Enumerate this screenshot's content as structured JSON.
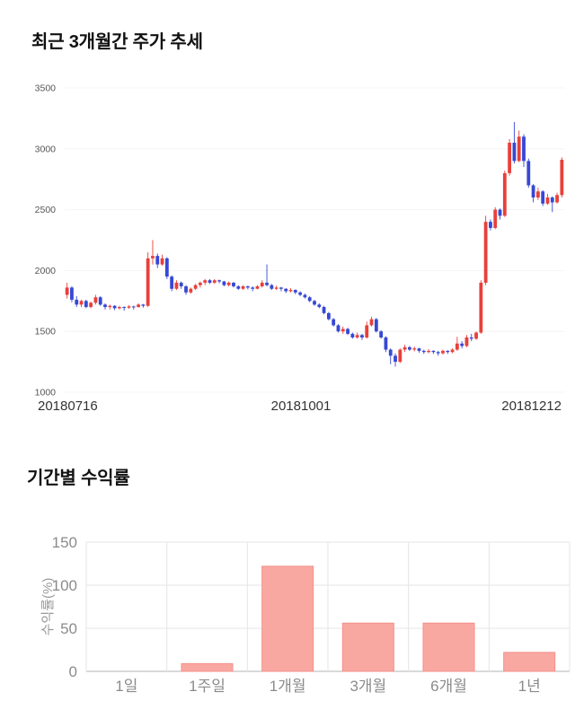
{
  "sections": {
    "price_trend": {
      "title": "최근 3개월간 주가 추세"
    },
    "returns": {
      "title": "기간별 수익률"
    }
  },
  "chart_data": [
    {
      "type": "candlestick",
      "title": "최근 3개월간 주가 추세",
      "ylim": [
        1000,
        3500
      ],
      "y_ticks": [
        1000,
        1500,
        2000,
        2500,
        3000,
        3500
      ],
      "x_labels": [
        "20180716",
        "20181001",
        "20181212"
      ],
      "up_color": "#e8403a",
      "down_color": "#3748d4",
      "tick_color": "#555555",
      "x_label_color": "#333333",
      "candles": [
        [
          1800,
          1900,
          1770,
          1860
        ],
        [
          1860,
          1870,
          1740,
          1760
        ],
        [
          1760,
          1790,
          1700,
          1720
        ],
        [
          1720,
          1760,
          1700,
          1750
        ],
        [
          1750,
          1760,
          1690,
          1700
        ],
        [
          1700,
          1745,
          1690,
          1735
        ],
        [
          1735,
          1800,
          1720,
          1780
        ],
        [
          1780,
          1790,
          1710,
          1720
        ],
        [
          1720,
          1730,
          1680,
          1700
        ],
        [
          1700,
          1720,
          1680,
          1710
        ],
        [
          1710,
          1715,
          1675,
          1690
        ],
        [
          1690,
          1710,
          1680,
          1700
        ],
        [
          1700,
          1705,
          1670,
          1695
        ],
        [
          1695,
          1715,
          1685,
          1705
        ],
        [
          1705,
          1710,
          1680,
          1700
        ],
        [
          1700,
          1730,
          1695,
          1720
        ],
        [
          1720,
          1725,
          1695,
          1710
        ],
        [
          1710,
          2150,
          1700,
          2100
        ],
        [
          2100,
          2250,
          2050,
          2120
        ],
        [
          2120,
          2140,
          2020,
          2050
        ],
        [
          2050,
          2130,
          2040,
          2100
        ],
        [
          2100,
          2110,
          1930,
          1950
        ],
        [
          1950,
          1960,
          1830,
          1850
        ],
        [
          1850,
          1920,
          1840,
          1900
        ],
        [
          1900,
          1910,
          1850,
          1870
        ],
        [
          1870,
          1880,
          1800,
          1820
        ],
        [
          1820,
          1860,
          1810,
          1850
        ],
        [
          1850,
          1890,
          1840,
          1880
        ],
        [
          1880,
          1910,
          1860,
          1900
        ],
        [
          1900,
          1930,
          1880,
          1920
        ],
        [
          1920,
          1930,
          1890,
          1900
        ],
        [
          1900,
          1930,
          1890,
          1920
        ],
        [
          1920,
          1925,
          1895,
          1910
        ],
        [
          1910,
          1915,
          1870,
          1880
        ],
        [
          1880,
          1910,
          1870,
          1900
        ],
        [
          1900,
          1905,
          1860,
          1870
        ],
        [
          1870,
          1880,
          1840,
          1850
        ],
        [
          1850,
          1880,
          1840,
          1870
        ],
        [
          1870,
          1875,
          1845,
          1860
        ],
        [
          1860,
          1870,
          1830,
          1850
        ],
        [
          1850,
          1880,
          1845,
          1870
        ],
        [
          1870,
          1920,
          1860,
          1900
        ],
        [
          1900,
          2050,
          1870,
          1880
        ],
        [
          1880,
          1890,
          1840,
          1850
        ],
        [
          1850,
          1875,
          1840,
          1860
        ],
        [
          1860,
          1865,
          1830,
          1850
        ],
        [
          1850,
          1855,
          1815,
          1830
        ],
        [
          1830,
          1855,
          1820,
          1840
        ],
        [
          1840,
          1845,
          1805,
          1820
        ],
        [
          1820,
          1830,
          1790,
          1800
        ],
        [
          1800,
          1810,
          1770,
          1780
        ],
        [
          1780,
          1790,
          1740,
          1750
        ],
        [
          1750,
          1760,
          1710,
          1720
        ],
        [
          1720,
          1730,
          1690,
          1700
        ],
        [
          1700,
          1710,
          1640,
          1650
        ],
        [
          1650,
          1660,
          1590,
          1600
        ],
        [
          1600,
          1610,
          1540,
          1550
        ],
        [
          1550,
          1560,
          1490,
          1500
        ],
        [
          1500,
          1540,
          1480,
          1520
        ],
        [
          1520,
          1530,
          1470,
          1480
        ],
        [
          1480,
          1490,
          1440,
          1450
        ],
        [
          1450,
          1490,
          1440,
          1470
        ],
        [
          1470,
          1480,
          1430,
          1450
        ],
        [
          1450,
          1580,
          1440,
          1550
        ],
        [
          1550,
          1620,
          1540,
          1600
        ],
        [
          1600,
          1610,
          1490,
          1500
        ],
        [
          1500,
          1510,
          1440,
          1450
        ],
        [
          1450,
          1460,
          1330,
          1350
        ],
        [
          1350,
          1360,
          1230,
          1300
        ],
        [
          1300,
          1320,
          1210,
          1250
        ],
        [
          1250,
          1360,
          1240,
          1350
        ],
        [
          1350,
          1390,
          1330,
          1370
        ],
        [
          1370,
          1380,
          1340,
          1350
        ],
        [
          1350,
          1375,
          1335,
          1360
        ],
        [
          1360,
          1365,
          1325,
          1340
        ],
        [
          1340,
          1350,
          1315,
          1330
        ],
        [
          1330,
          1355,
          1320,
          1340
        ],
        [
          1340,
          1345,
          1315,
          1330
        ],
        [
          1330,
          1340,
          1300,
          1320
        ],
        [
          1320,
          1350,
          1310,
          1340
        ],
        [
          1340,
          1345,
          1315,
          1330
        ],
        [
          1330,
          1360,
          1320,
          1350
        ],
        [
          1350,
          1455,
          1340,
          1400
        ],
        [
          1400,
          1420,
          1360,
          1380
        ],
        [
          1380,
          1470,
          1370,
          1450
        ],
        [
          1450,
          1480,
          1420,
          1440
        ],
        [
          1440,
          1500,
          1430,
          1490
        ],
        [
          1490,
          1920,
          1480,
          1900
        ],
        [
          1900,
          2450,
          1880,
          2400
        ],
        [
          2400,
          2420,
          2330,
          2350
        ],
        [
          2350,
          2520,
          2340,
          2500
        ],
        [
          2500,
          2510,
          2420,
          2450
        ],
        [
          2450,
          2820,
          2440,
          2800
        ],
        [
          2800,
          3080,
          2780,
          3050
        ],
        [
          3050,
          3220,
          2880,
          2900
        ],
        [
          2900,
          3150,
          2890,
          3100
        ],
        [
          3100,
          3120,
          2850,
          2900
        ],
        [
          2900,
          2920,
          2680,
          2700
        ],
        [
          2700,
          2710,
          2560,
          2600
        ],
        [
          2600,
          2680,
          2580,
          2650
        ],
        [
          2650,
          2660,
          2530,
          2550
        ],
        [
          2550,
          2630,
          2540,
          2600
        ],
        [
          2600,
          2610,
          2480,
          2560
        ],
        [
          2560,
          2640,
          2550,
          2620
        ],
        [
          2620,
          2930,
          2600,
          2910
        ]
      ]
    },
    {
      "type": "bar",
      "title": "기간별 수익률",
      "categories": [
        "1일",
        "1주일",
        "1개월",
        "3개월",
        "6개월",
        "1년"
      ],
      "values": [
        0,
        9,
        122,
        56,
        56,
        22
      ],
      "ylabel": "수익률(%)",
      "y_ticks": [
        0,
        50,
        100,
        150
      ],
      "ylim": [
        0,
        150
      ],
      "bar_fill": "#f9a8a1",
      "bar_border": "#f2908a",
      "grid_color": "#e5e5e5",
      "baseline_color": "#b3b3b3",
      "label_color": "#8b8b8b"
    }
  ]
}
